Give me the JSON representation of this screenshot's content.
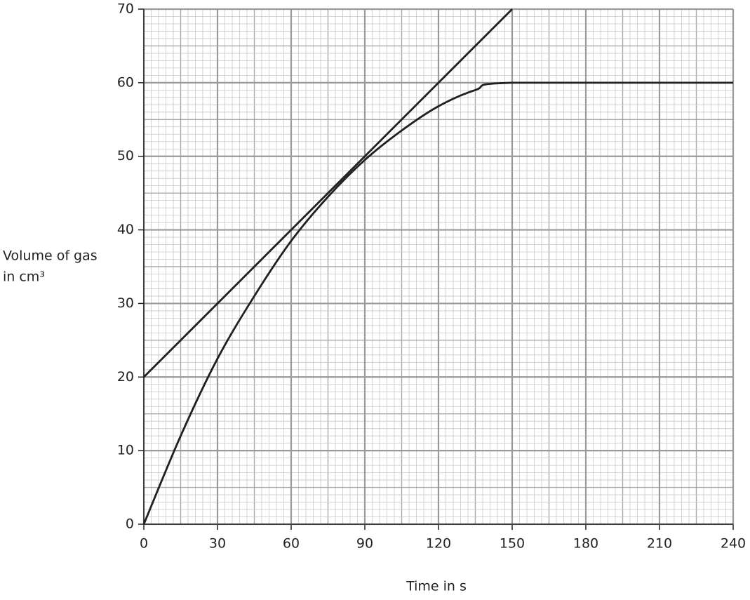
{
  "chart_data": {
    "type": "line",
    "xlabel": "Time in s",
    "ylabel": [
      "Volume of gas",
      "in cm³"
    ],
    "xlim": [
      0,
      240
    ],
    "ylim": [
      0,
      70
    ],
    "xticks": [
      0,
      30,
      60,
      90,
      120,
      150,
      180,
      210,
      240
    ],
    "yticks": [
      0,
      10,
      20,
      30,
      40,
      50,
      60,
      70
    ],
    "grid": true,
    "series": [
      {
        "color": "#231f20",
        "smooth": true,
        "x": [
          0,
          15,
          30,
          45,
          60,
          75,
          90,
          105,
          120,
          135,
          150,
          240
        ],
        "values": [
          0,
          12,
          22.5,
          31,
          38.5,
          44.5,
          49.5,
          53.5,
          56.8,
          59,
          60,
          60
        ]
      },
      {
        "color": "#231f20",
        "smooth": false,
        "x": [
          0,
          150
        ],
        "values": [
          20,
          70
        ]
      }
    ]
  }
}
